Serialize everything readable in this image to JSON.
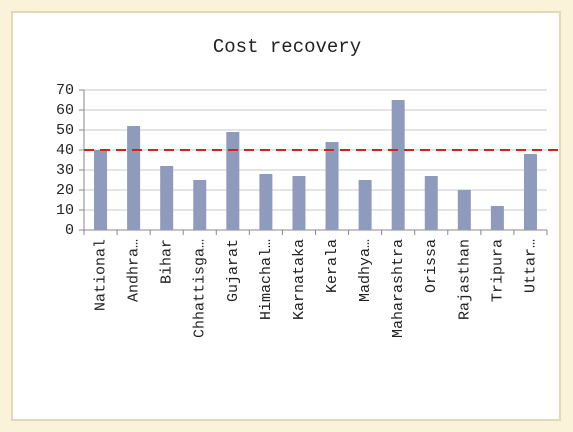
{
  "chart_data": {
    "type": "bar",
    "title": "Cost recovery",
    "categories": [
      "National",
      "Andhra…",
      "Bihar",
      "Chhattisga…",
      "Gujarat",
      "Himachal…",
      "Karnataka",
      "Kerala",
      "Madhya…",
      "Maharashtra",
      "Orissa",
      "Rajasthan",
      "Tripura",
      "Uttar…"
    ],
    "values": [
      40,
      52,
      32,
      25,
      49,
      28,
      27,
      44,
      25,
      65,
      27,
      20,
      12,
      38
    ],
    "color": "#8f9bbd",
    "ylim": [
      0,
      70
    ],
    "yticks": [
      0,
      10,
      20,
      30,
      40,
      50,
      60,
      70
    ],
    "grid": true,
    "reference_line": 40,
    "reference_color": "#d42020"
  }
}
